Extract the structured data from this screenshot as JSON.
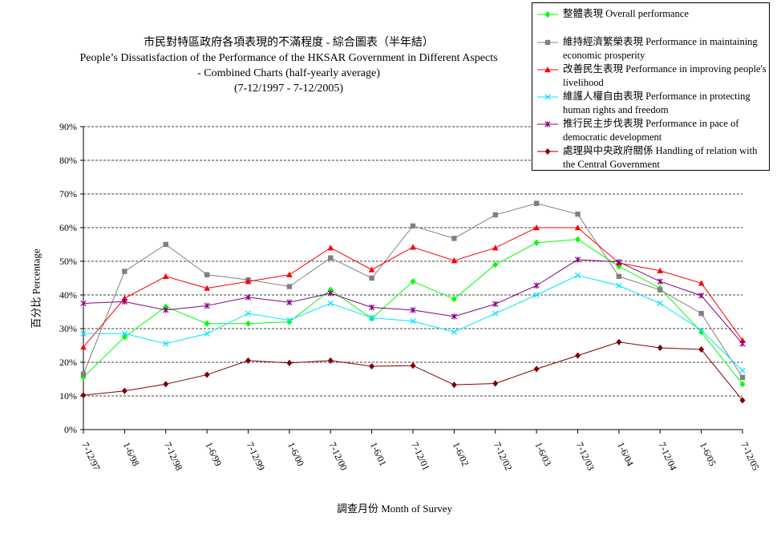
{
  "chart_data": {
    "type": "line",
    "title": "市民對特區政府各項表現的不滿程度 - 綜合圖表（半年結）",
    "subtitle_en_1": "People’s Dissatisfaction of the Performance of the HKSAR Government in Different Aspects",
    "subtitle_en_2": "- Combined Charts (half-yearly average)",
    "subtitle_range": "(7-12/1997 - 7-12/2005)",
    "xlabel": "調查月份 Month of Survey",
    "ylabel": "百分比 Percentage",
    "ylim": [
      0,
      90
    ],
    "yticks": [
      "0%",
      "10%",
      "20%",
      "30%",
      "40%",
      "50%",
      "60%",
      "70%",
      "80%",
      "90%"
    ],
    "grid": true,
    "legend_position": "top-right",
    "categories": [
      "7-12/97",
      "1-6/98",
      "7-12/98",
      "1-6/99",
      "7-12/99",
      "1-6/00",
      "7-12/00",
      "1-6/01",
      "7-12/01",
      "1-6/02",
      "7-12/02",
      "1-6/03",
      "7-12/03",
      "1-6/04",
      "7-12/04",
      "1-6/05",
      "7-12/05"
    ],
    "series": [
      {
        "name": "整體表現 Overall performance",
        "color": "#00ff00",
        "marker": "diamond",
        "values": [
          15.5,
          27.5,
          36.5,
          31.5,
          31.5,
          32,
          41.5,
          33,
          44,
          38.8,
          49,
          55.5,
          56.5,
          48.5,
          42,
          29,
          13.5
        ]
      },
      {
        "name": "維持經濟繁榮表現 Performance in maintaining economic prosperity",
        "color": "#808080",
        "marker": "square",
        "values": [
          16.5,
          47,
          55,
          46,
          44.5,
          42.5,
          51,
          45,
          60.5,
          56.8,
          63.8,
          67.2,
          64,
          45.5,
          41.5,
          34.5,
          15.5
        ]
      },
      {
        "name": "改善民生表現 Performance in improving people's livelihood",
        "color": "#ff0000",
        "marker": "triangle",
        "values": [
          24.5,
          39,
          45.5,
          42,
          44,
          46,
          54,
          47.5,
          54.2,
          50.2,
          54,
          60,
          60,
          49.5,
          47.2,
          43.5,
          26.5
        ]
      },
      {
        "name": "維護人權自由表現 Performance in protecting human rights and freedom",
        "color": "#00e5ff",
        "marker": "x",
        "values": [
          28.5,
          28.5,
          25.5,
          28.5,
          34.5,
          32.5,
          37.5,
          33.2,
          32.2,
          29,
          34.5,
          40,
          45.8,
          42.8,
          37.5,
          29.5,
          17.5
        ]
      },
      {
        "name": "推行民主步伐表現 Performance in pace of democratic development",
        "color": "#800080",
        "marker": "star",
        "values": [
          37.5,
          38,
          35.5,
          36.8,
          39.3,
          37.8,
          40.5,
          36.3,
          35.5,
          33.6,
          37.3,
          42.8,
          50.5,
          49.8,
          44,
          39.8,
          25.5
        ]
      },
      {
        "name": "處理與中央政府關係 Handling of relation with the Central Government",
        "color": "#800000",
        "marker": "diamond",
        "values": [
          10.2,
          11.5,
          13.5,
          16.3,
          20.5,
          19.8,
          20.5,
          18.8,
          19,
          13.3,
          13.7,
          18,
          22,
          26,
          24.3,
          23.8,
          8.7
        ]
      }
    ]
  }
}
